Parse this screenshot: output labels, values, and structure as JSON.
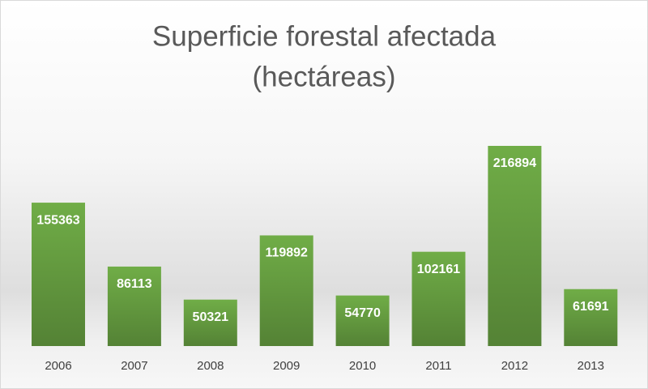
{
  "chart_data": {
    "type": "bar",
    "title": [
      "Superficie forestal afectada",
      "(hectáreas)"
    ],
    "categories": [
      "2006",
      "2007",
      "2008",
      "2009",
      "2010",
      "2011",
      "2012",
      "2013"
    ],
    "values": [
      155363,
      86113,
      50321,
      119892,
      54770,
      102161,
      216894,
      61691
    ],
    "color": "#70ad47"
  }
}
